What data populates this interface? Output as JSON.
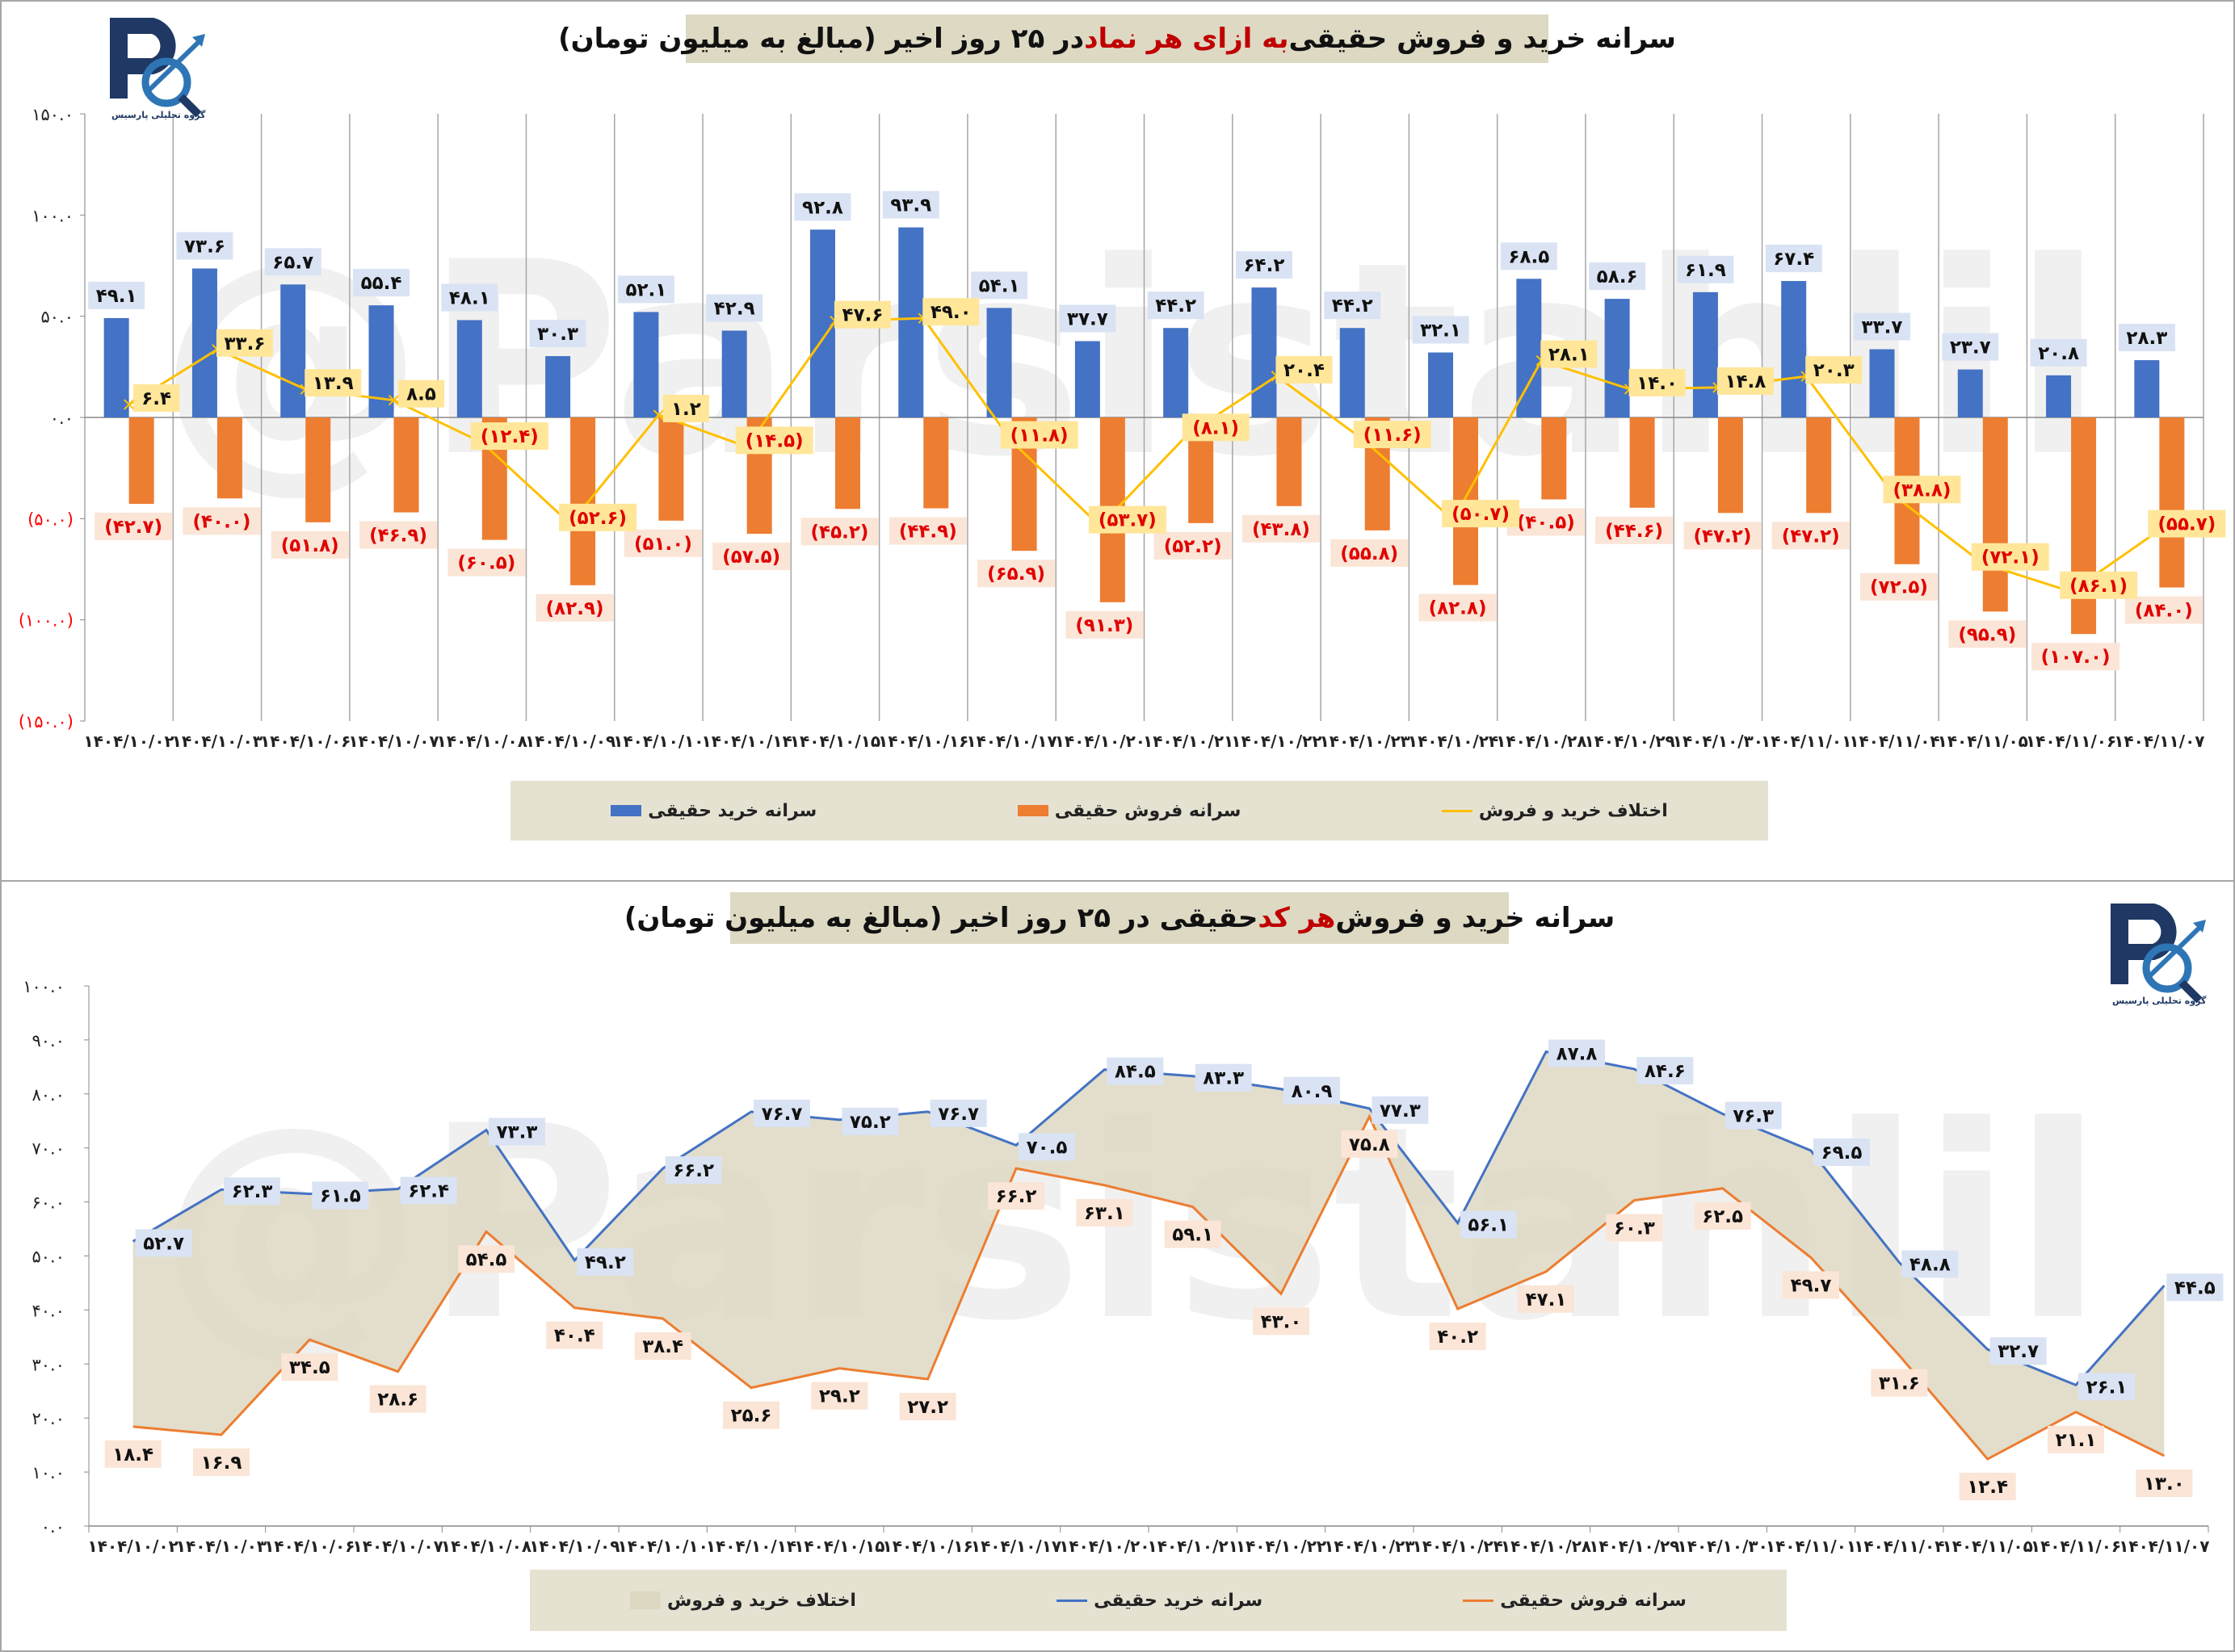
{
  "colors": {
    "buy": "#4472C4",
    "sell": "#ED7D31",
    "diff": "#FFC000",
    "buy_label_bg": "#DAE3F3",
    "sell_label_bg": "#FBE5D6",
    "diff_label_bg": "#FFE699",
    "area": "#DDD8C2",
    "highlight": "#C00000",
    "negative_tick": "#FF0000"
  },
  "logo": {
    "text": "گروه تحلیلی پارسیس"
  },
  "watermark": "@Parsistahlil",
  "chart_data": [
    {
      "type": "bar",
      "title_part1": "سرانه خرید و فروش حقیقی ",
      "title_highlight": "به ازای هر نماد",
      "title_part2": " در ۲۵ روز اخیر (مبالغ به میلیون تومان)",
      "ylim": [
        -150,
        150
      ],
      "yticks": [
        150,
        100,
        50,
        0,
        -50,
        -100,
        -150
      ],
      "ytick_labels": [
        "۱۵۰.۰",
        "۱۰۰.۰",
        "۵۰.۰",
        "۰.۰",
        "(۵۰.۰)",
        "(۱۰۰.۰)",
        "(۱۵۰.۰)"
      ],
      "categories": [
        "۱۴۰۴/۱۰/۰۲",
        "۱۴۰۴/۱۰/۰۳",
        "۱۴۰۴/۱۰/۰۶",
        "۱۴۰۴/۱۰/۰۷",
        "۱۴۰۴/۱۰/۰۸",
        "۱۴۰۴/۱۰/۰۹",
        "۱۴۰۴/۱۰/۱۰",
        "۱۴۰۴/۱۰/۱۴",
        "۱۴۰۴/۱۰/۱۵",
        "۱۴۰۴/۱۰/۱۶",
        "۱۴۰۴/۱۰/۱۷",
        "۱۴۰۴/۱۰/۲۰",
        "۱۴۰۴/۱۰/۲۱",
        "۱۴۰۴/۱۰/۲۲",
        "۱۴۰۴/۱۰/۲۳",
        "۱۴۰۴/۱۰/۲۴",
        "۱۴۰۴/۱۰/۲۸",
        "۱۴۰۴/۱۰/۲۹",
        "۱۴۰۴/۱۰/۳۰",
        "۱۴۰۴/۱۱/۰۱",
        "۱۴۰۴/۱۱/۰۴",
        "۱۴۰۴/۱۱/۰۵",
        "۱۴۰۴/۱۱/۰۶",
        "۱۴۰۴/۱۱/۰۷"
      ],
      "series": [
        {
          "name": "سرانه خرید حقیقی",
          "kind": "bar",
          "values": [
            49.1,
            73.6,
            65.7,
            55.4,
            48.1,
            30.3,
            52.1,
            42.9,
            92.8,
            93.9,
            54.1,
            37.7,
            44.2,
            64.2,
            44.2,
            32.1,
            68.5,
            58.6,
            61.9,
            67.4,
            33.7,
            23.7,
            20.8,
            28.3
          ]
        },
        {
          "name": "سرانه فروش حقیقی",
          "kind": "bar",
          "values": [
            -42.7,
            -40.0,
            -51.8,
            -46.9,
            -60.5,
            -82.9,
            -51.0,
            -57.5,
            -45.2,
            -44.9,
            -65.9,
            -91.3,
            -52.2,
            -43.8,
            -55.8,
            -82.8,
            -40.5,
            -44.6,
            -47.2,
            -47.2,
            -72.5,
            -95.9,
            -107.0,
            -84.0
          ]
        },
        {
          "name": "اختلاف خرید و فروش",
          "kind": "line",
          "values": [
            6.4,
            33.6,
            13.9,
            8.5,
            -12.4,
            -52.6,
            1.2,
            -14.5,
            47.6,
            49.0,
            -11.8,
            -53.7,
            -8.1,
            20.4,
            -11.6,
            -50.7,
            28.1,
            14.0,
            14.8,
            20.3,
            -38.8,
            -72.1,
            -86.1,
            -55.7
          ]
        }
      ],
      "legend": "bottom"
    },
    {
      "type": "line",
      "title_part1": "سرانه خرید و فروش ",
      "title_highlight": "هر کد",
      "title_part2": " حقیقی در ۲۵ روز اخیر (مبالغ به میلیون تومان)",
      "ylim": [
        0,
        100
      ],
      "yticks": [
        100,
        90,
        80,
        70,
        60,
        50,
        40,
        30,
        20,
        10,
        0
      ],
      "ytick_labels": [
        "۱۰۰.۰",
        "۹۰.۰",
        "۸۰.۰",
        "۷۰.۰",
        "۶۰.۰",
        "۵۰.۰",
        "۴۰.۰",
        "۳۰.۰",
        "۲۰.۰",
        "۱۰.۰",
        "۰.۰"
      ],
      "categories": [
        "۱۴۰۴/۱۰/۰۲",
        "۱۴۰۴/۱۰/۰۳",
        "۱۴۰۴/۱۰/۰۶",
        "۱۴۰۴/۱۰/۰۷",
        "۱۴۰۴/۱۰/۰۸",
        "۱۴۰۴/۱۰/۰۹",
        "۱۴۰۴/۱۰/۱۰",
        "۱۴۰۴/۱۰/۱۴",
        "۱۴۰۴/۱۰/۱۵",
        "۱۴۰۴/۱۰/۱۶",
        "۱۴۰۴/۱۰/۱۷",
        "۱۴۰۴/۱۰/۲۰",
        "۱۴۰۴/۱۰/۲۱",
        "۱۴۰۴/۱۰/۲۲",
        "۱۴۰۴/۱۰/۲۳",
        "۱۴۰۴/۱۰/۲۴",
        "۱۴۰۴/۱۰/۲۸",
        "۱۴۰۴/۱۰/۲۹",
        "۱۴۰۴/۱۰/۳۰",
        "۱۴۰۴/۱۱/۰۱",
        "۱۴۰۴/۱۱/۰۴",
        "۱۴۰۴/۱۱/۰۵",
        "۱۴۰۴/۱۱/۰۶",
        "۱۴۰۴/۱۱/۰۷"
      ],
      "series": [
        {
          "name": "اختلاف خرید و فروش",
          "kind": "area"
        },
        {
          "name": "سرانه خرید حقیقی",
          "kind": "line",
          "values": [
            52.7,
            62.3,
            61.5,
            62.4,
            73.3,
            49.2,
            66.2,
            76.7,
            75.2,
            76.7,
            70.5,
            84.5,
            83.3,
            80.9,
            77.3,
            56.1,
            87.8,
            84.6,
            76.3,
            69.5,
            48.8,
            32.7,
            26.1,
            44.5
          ]
        },
        {
          "name": "سرانه فروش حقیقی",
          "kind": "line",
          "values": [
            18.4,
            16.9,
            34.5,
            28.6,
            54.5,
            40.4,
            38.4,
            25.6,
            29.2,
            27.2,
            66.2,
            63.1,
            59.1,
            43.0,
            75.8,
            40.2,
            47.1,
            60.3,
            62.5,
            49.7,
            31.6,
            12.4,
            21.1,
            13.0
          ]
        }
      ],
      "legend": "bottom"
    }
  ]
}
